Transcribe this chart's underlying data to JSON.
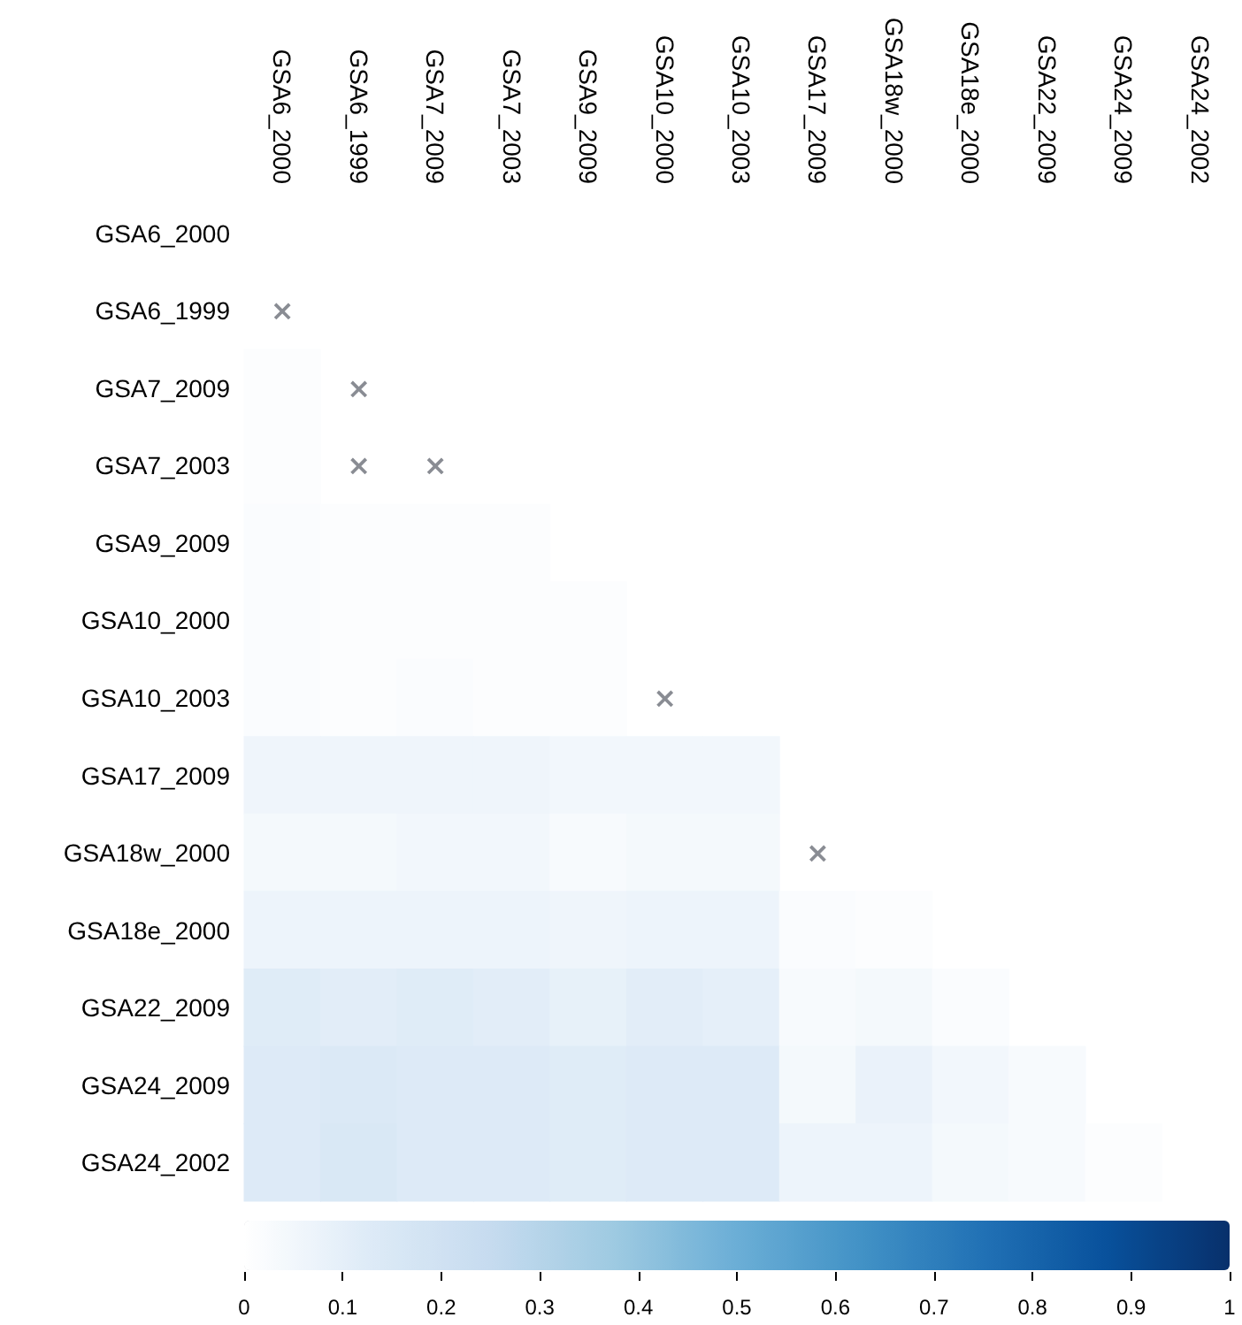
{
  "chart_data": {
    "type": "heatmap",
    "categories": [
      "GSA6_2000",
      "GSA6_1999",
      "GSA7_2009",
      "GSA7_2003",
      "GSA9_2009",
      "GSA10_2000",
      "GSA10_2003",
      "GSA17_2009",
      "GSA18w_2000",
      "GSA18e_2000",
      "GSA22_2009",
      "GSA24_2009",
      "GSA24_2002"
    ],
    "y_categories": [
      "GSA6_2000",
      "GSA6_1999",
      "GSA7_2009",
      "GSA7_2003",
      "GSA9_2009",
      "GSA10_2000",
      "GSA10_2003",
      "GSA17_2009",
      "GSA18w_2000",
      "GSA18e_2000",
      "GSA22_2009",
      "GSA24_2009",
      "GSA24_2002"
    ],
    "cells": [
      [
        null,
        null,
        null,
        null,
        null,
        null,
        null,
        null,
        null,
        null,
        null,
        null,
        null
      ],
      [
        null,
        null,
        null,
        null,
        null,
        null,
        null,
        null,
        null,
        null,
        null,
        null,
        null
      ],
      [
        0.01,
        null,
        null,
        null,
        null,
        null,
        null,
        null,
        null,
        null,
        null,
        null,
        null
      ],
      [
        0.01,
        null,
        null,
        null,
        null,
        null,
        null,
        null,
        null,
        null,
        null,
        null,
        null
      ],
      [
        0.02,
        0.01,
        0.01,
        0.01,
        null,
        null,
        null,
        null,
        null,
        null,
        null,
        null,
        null
      ],
      [
        0.02,
        0.01,
        0.01,
        0.01,
        0.01,
        null,
        null,
        null,
        null,
        null,
        null,
        null,
        null
      ],
      [
        0.02,
        0.01,
        0.02,
        0.01,
        0.01,
        null,
        null,
        null,
        null,
        null,
        null,
        null,
        null
      ],
      [
        0.06,
        0.06,
        0.06,
        0.06,
        0.05,
        0.05,
        0.05,
        null,
        null,
        null,
        null,
        null,
        null
      ],
      [
        0.04,
        0.04,
        0.05,
        0.05,
        0.03,
        0.04,
        0.04,
        null,
        null,
        null,
        null,
        null,
        null
      ],
      [
        0.07,
        0.07,
        0.07,
        0.07,
        0.06,
        0.07,
        0.07,
        0.02,
        0.01,
        null,
        null,
        null,
        null
      ],
      [
        0.12,
        0.11,
        0.12,
        0.11,
        0.09,
        0.11,
        0.1,
        0.03,
        0.04,
        0.02,
        null,
        null,
        null
      ],
      [
        0.13,
        0.14,
        0.13,
        0.13,
        0.12,
        0.13,
        0.13,
        0.04,
        0.08,
        0.05,
        0.03,
        null,
        null
      ],
      [
        0.13,
        0.15,
        0.13,
        0.13,
        0.12,
        0.13,
        0.13,
        0.07,
        0.07,
        0.04,
        0.03,
        0.01,
        null
      ]
    ],
    "cell_labels": [
      [
        null,
        null,
        null,
        null,
        null,
        null,
        null,
        null,
        null,
        null,
        null,
        null,
        null
      ],
      [
        "×",
        null,
        null,
        null,
        null,
        null,
        null,
        null,
        null,
        null,
        null,
        null,
        null
      ],
      [
        null,
        "×",
        null,
        null,
        null,
        null,
        null,
        null,
        null,
        null,
        null,
        null,
        null
      ],
      [
        null,
        "×",
        "×",
        null,
        null,
        null,
        null,
        null,
        null,
        null,
        null,
        null,
        null
      ],
      [
        null,
        null,
        null,
        null,
        null,
        null,
        null,
        null,
        null,
        null,
        null,
        null,
        null
      ],
      [
        null,
        null,
        null,
        null,
        null,
        null,
        null,
        null,
        null,
        null,
        null,
        null,
        null
      ],
      [
        null,
        null,
        null,
        null,
        null,
        "×",
        null,
        null,
        null,
        null,
        null,
        null,
        null
      ],
      [
        null,
        null,
        null,
        null,
        null,
        null,
        null,
        null,
        null,
        null,
        null,
        null,
        null
      ],
      [
        null,
        null,
        null,
        null,
        null,
        null,
        null,
        "×",
        null,
        null,
        null,
        null,
        null
      ],
      [
        null,
        null,
        null,
        null,
        null,
        null,
        null,
        null,
        null,
        null,
        null,
        null,
        null
      ],
      [
        null,
        null,
        null,
        null,
        null,
        null,
        null,
        null,
        null,
        null,
        null,
        null,
        null
      ],
      [
        null,
        null,
        null,
        null,
        null,
        null,
        null,
        null,
        null,
        null,
        null,
        null,
        null
      ],
      [
        null,
        null,
        null,
        null,
        null,
        null,
        null,
        null,
        null,
        null,
        null,
        null,
        null
      ]
    ],
    "clim": [
      0,
      1
    ],
    "cticks": [
      0,
      0.1,
      0.2,
      0.3,
      0.4,
      0.5,
      0.6,
      0.7,
      0.8,
      0.9,
      1
    ]
  }
}
